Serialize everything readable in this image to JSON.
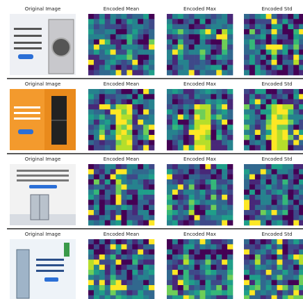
{
  "rows": [
    {
      "titles": [
        "Original Image",
        "Encoded Mean",
        "Encoded Max",
        "Encoded Std"
      ]
    },
    {
      "titles": [
        "Original Image",
        "Encoded Mean",
        "Encoded Max",
        "Encoded Std"
      ]
    },
    {
      "titles": [
        "Original Image",
        "Encoded Mean",
        "Encoded Max",
        "Encoded Std"
      ]
    },
    {
      "titles": [
        "Original Image",
        "Encoded Mean",
        "Encoded Max",
        "Encoded Std"
      ]
    }
  ]
}
